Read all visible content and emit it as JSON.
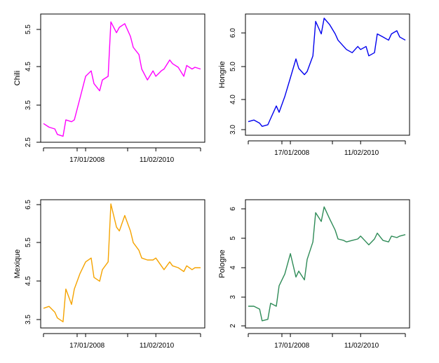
{
  "chart_data": [
    {
      "type": "line",
      "ylabel": "Chili",
      "color": "#ff00ff",
      "ylim": [
        2.5,
        5.8
      ],
      "yticks": [
        "2.5",
        "3.5",
        "4.5",
        "5.5"
      ],
      "xticks": [
        "17/01/2008",
        "11/02/2010"
      ],
      "series": [
        {
          "x": [
            "2006-10",
            "2006-12",
            "2007-02",
            "2007-03",
            "2007-05",
            "2007-06",
            "2007-08",
            "2007-09",
            "2007-11",
            "2008-01",
            "2008-03",
            "2008-04",
            "2008-06",
            "2008-07",
            "2008-09",
            "2008-10",
            "2008-12",
            "2009-01",
            "2009-03",
            "2009-05",
            "2009-06",
            "2009-08",
            "2009-09",
            "2009-11",
            "2010-01",
            "2010-02",
            "2010-04",
            "2010-05",
            "2010-07",
            "2010-08",
            "2010-10",
            "2010-12",
            "2011-01",
            "2011-03",
            "2011-04",
            "2011-06"
          ],
          "values": [
            2.9,
            2.8,
            2.75,
            2.6,
            2.55,
            3.0,
            2.95,
            3.0,
            3.6,
            4.2,
            4.35,
            4.0,
            3.8,
            4.1,
            4.2,
            5.7,
            5.4,
            5.55,
            5.65,
            5.3,
            5.0,
            4.8,
            4.4,
            4.1,
            4.35,
            4.2,
            4.35,
            4.4,
            4.65,
            4.55,
            4.45,
            4.2,
            4.5,
            4.4,
            4.45,
            4.4
          ]
        }
      ]
    },
    {
      "type": "line",
      "ylabel": "Hongrie",
      "color": "#0000ee",
      "ylim": [
        2.8,
        6.4
      ],
      "yticks": [
        "3.0",
        "4.0",
        "5.0",
        "6.0"
      ],
      "xticks": [
        "17/01/2008",
        "11/02/2010"
      ],
      "series": [
        {
          "x": [
            "2006-10",
            "2006-12",
            "2007-02",
            "2007-03",
            "2007-05",
            "2007-06",
            "2007-08",
            "2007-09",
            "2007-11",
            "2008-01",
            "2008-03",
            "2008-04",
            "2008-06",
            "2008-07",
            "2008-09",
            "2008-10",
            "2008-12",
            "2009-01",
            "2009-03",
            "2009-05",
            "2009-06",
            "2009-08",
            "2009-09",
            "2009-11",
            "2010-01",
            "2010-02",
            "2010-04",
            "2010-05",
            "2010-07",
            "2010-08",
            "2010-10",
            "2010-12",
            "2011-01",
            "2011-03",
            "2011-04",
            "2011-06"
          ],
          "values": [
            3.1,
            3.15,
            3.05,
            2.95,
            3.0,
            3.2,
            3.6,
            3.4,
            3.9,
            4.5,
            5.1,
            4.8,
            4.6,
            4.7,
            5.2,
            6.3,
            5.9,
            6.4,
            6.2,
            5.9,
            5.7,
            5.5,
            5.4,
            5.3,
            5.5,
            5.4,
            5.5,
            5.2,
            5.3,
            5.9,
            5.8,
            5.7,
            5.9,
            6.0,
            5.8,
            5.7
          ]
        }
      ]
    },
    {
      "type": "line",
      "ylabel": "Mexique",
      "color": "#f5a300",
      "ylim": [
        3.3,
        6.4
      ],
      "yticks": [
        "3.5",
        "4.5",
        "5.5",
        "6.5"
      ],
      "xticks": [
        "17/01/2008",
        "11/02/2010"
      ],
      "series": [
        {
          "x": [
            "2006-10",
            "2006-12",
            "2007-02",
            "2007-03",
            "2007-05",
            "2007-06",
            "2007-08",
            "2007-09",
            "2007-11",
            "2008-01",
            "2008-03",
            "2008-04",
            "2008-06",
            "2008-07",
            "2008-09",
            "2008-10",
            "2008-12",
            "2009-01",
            "2009-03",
            "2009-05",
            "2009-06",
            "2009-08",
            "2009-09",
            "2009-11",
            "2010-01",
            "2010-02",
            "2010-04",
            "2010-05",
            "2010-07",
            "2010-08",
            "2010-10",
            "2010-12",
            "2011-01",
            "2011-03",
            "2011-04",
            "2011-06"
          ],
          "values": [
            3.7,
            3.75,
            3.6,
            3.45,
            3.35,
            4.2,
            3.8,
            4.2,
            4.6,
            4.9,
            5.0,
            4.5,
            4.4,
            4.7,
            4.9,
            6.4,
            5.8,
            5.7,
            6.1,
            5.7,
            5.4,
            5.2,
            5.0,
            4.95,
            4.95,
            5.0,
            4.8,
            4.7,
            4.9,
            4.8,
            4.75,
            4.65,
            4.8,
            4.7,
            4.75,
            4.75
          ]
        }
      ]
    },
    {
      "type": "line",
      "ylabel": "Pologne",
      "color": "#2e8b57",
      "ylim": [
        2.0,
        6.1
      ],
      "yticks": [
        "2",
        "3",
        "4",
        "5",
        "6"
      ],
      "xticks": [
        "17/01/2008",
        "11/02/2010"
      ],
      "series": [
        {
          "x": [
            "2006-10",
            "2006-12",
            "2007-02",
            "2007-03",
            "2007-05",
            "2007-06",
            "2007-08",
            "2007-09",
            "2007-11",
            "2008-01",
            "2008-03",
            "2008-04",
            "2008-06",
            "2008-07",
            "2008-09",
            "2008-10",
            "2008-12",
            "2009-01",
            "2009-03",
            "2009-05",
            "2009-06",
            "2009-08",
            "2009-09",
            "2009-11",
            "2010-01",
            "2010-02",
            "2010-04",
            "2010-05",
            "2010-07",
            "2010-08",
            "2010-10",
            "2010-12",
            "2011-01",
            "2011-03",
            "2011-04",
            "2011-06"
          ],
          "values": [
            2.6,
            2.6,
            2.5,
            2.1,
            2.15,
            2.7,
            2.6,
            3.3,
            3.7,
            4.4,
            3.6,
            3.8,
            3.5,
            4.2,
            4.8,
            5.8,
            5.5,
            6.0,
            5.6,
            5.2,
            4.9,
            4.85,
            4.8,
            4.85,
            4.9,
            5.0,
            4.8,
            4.7,
            4.9,
            5.1,
            4.85,
            4.8,
            5.0,
            4.95,
            5.0,
            5.05
          ]
        }
      ]
    }
  ]
}
